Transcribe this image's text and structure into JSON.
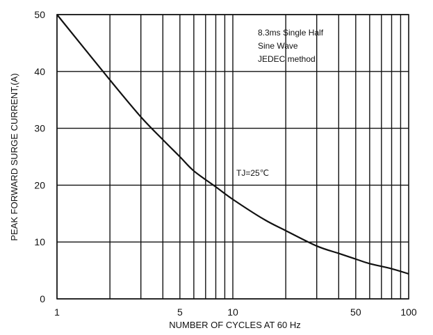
{
  "chart_data": {
    "type": "line",
    "xlabel": "NUMBER  OF  CYCLES  AT  60  Hz",
    "ylabel": "PEAK FORWARD SURGE CURRENT,(A)",
    "x_scale": "log",
    "xlim": [
      1,
      100
    ],
    "ylim": [
      0,
      50
    ],
    "x_tick_labels": [
      "1",
      "5",
      "10",
      "50",
      "100"
    ],
    "x_tick_values": [
      1,
      5,
      10,
      50,
      100
    ],
    "y_tick_labels": [
      "0",
      "10",
      "20",
      "30",
      "40",
      "50"
    ],
    "y_tick_values": [
      0,
      10,
      20,
      30,
      40,
      50
    ],
    "grid": true,
    "series": [
      {
        "x": [
          1,
          2,
          3,
          4,
          5,
          6,
          8,
          10,
          15,
          20,
          30,
          40,
          50,
          60,
          80,
          100
        ],
        "y": [
          50,
          38.5,
          32,
          28,
          25,
          22.5,
          19.7,
          17.5,
          14,
          12,
          9.3,
          8,
          7,
          6.2,
          5.3,
          4.4
        ]
      }
    ],
    "annotations": {
      "conditions": [
        "8.3ms Single Half",
        "Sine Wave",
        "JEDEC method"
      ],
      "temperature": "TJ=25℃"
    }
  }
}
